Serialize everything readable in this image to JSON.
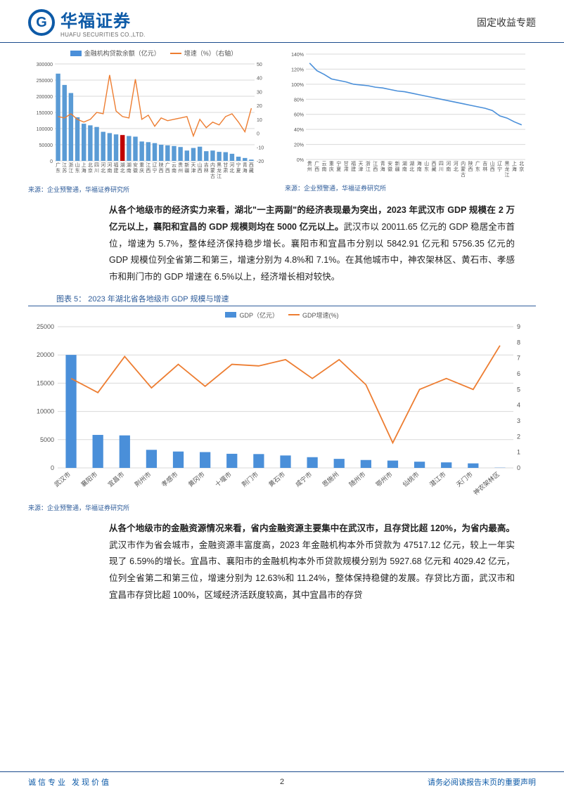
{
  "header": {
    "logo_cn": "华福证券",
    "logo_en": "HUAFU SECURITIES CO.,LTD.",
    "topic": "固定收益专题"
  },
  "chart1": {
    "type": "bar_line_dual_axis",
    "legend_bar": "金融机构贷款余额（亿元）",
    "legend_line": "增速（%）（右轴）",
    "categories": [
      "广东",
      "江苏",
      "浙江",
      "山东",
      "上海",
      "北京",
      "四川",
      "河北",
      "河南",
      "福建",
      "湖北",
      "湖南",
      "安徽",
      "重庆",
      "江西",
      "辽宁",
      "陕西",
      "广西",
      "云南",
      "贵州",
      "新疆",
      "天津",
      "山西",
      "吉林",
      "内蒙古",
      "黑龙江",
      "甘肃",
      "河北",
      "宁夏",
      "青海",
      "西藏"
    ],
    "bar_values": [
      270000,
      235000,
      210000,
      135000,
      115000,
      110000,
      105000,
      90000,
      86000,
      82000,
      80000,
      77000,
      75000,
      60000,
      58000,
      55000,
      50000,
      48000,
      46000,
      43000,
      32000,
      40000,
      44000,
      30000,
      32000,
      28000,
      27000,
      22000,
      13000,
      9000,
      4000
    ],
    "bar_highlight_index": 10,
    "line_values": [
      12,
      11,
      14,
      10,
      8,
      10,
      15,
      14,
      42,
      16,
      12,
      11,
      39,
      10,
      13,
      5,
      11,
      9,
      10,
      11,
      12,
      -2,
      10,
      4,
      8,
      6,
      12,
      14,
      8,
      1,
      18
    ],
    "bar_color": "#5a9bd5",
    "bar_highlight_color": "#c00000",
    "line_color": "#ed7d31",
    "y1_max": 300000,
    "y1_step": 50000,
    "y2_min": -20,
    "y2_max": 50,
    "y2_step": 10,
    "grid_color": "#d9d9d9",
    "label_fontsize": 7
  },
  "chart2": {
    "type": "line",
    "categories": [
      "贵州",
      "广西",
      "云南",
      "重庆",
      "宁夏",
      "甘肃",
      "福建",
      "天津",
      "浙江",
      "江西",
      "青海",
      "安徽",
      "新疆",
      "湖南",
      "湖北",
      "海南",
      "山东",
      "西藏",
      "四川",
      "河南",
      "河北",
      "内蒙古",
      "陕西",
      "广东",
      "吉林",
      "山西",
      "辽宁",
      "黑龙江",
      "上海",
      "北京"
    ],
    "values": [
      128,
      118,
      113,
      107,
      105,
      103,
      100,
      99,
      98,
      96,
      95,
      93,
      91,
      90,
      88,
      86,
      84,
      82,
      80,
      78,
      76,
      74,
      72,
      70,
      68,
      65,
      58,
      55,
      50,
      46
    ],
    "line_color": "#4a8fd9",
    "y_min": 0,
    "y_max": 140,
    "y_step": 20,
    "grid_color": "#d9d9d9",
    "label_fontsize": 7
  },
  "source_text": "来源：企业预警通，华福证券研究所",
  "para1_lead": "从各个地级市的经济实力来看，湖北\"一主两副\"的经济表现最为突出，2023 年武汉市 GDP 规模在 2 万亿元以上，襄阳和宜昌的 GDP 规模则均在 5000 亿元以上。",
  "para1_body": "武汉市以 20011.65 亿元的 GDP 稳居全市首位，增速为 5.7%，整体经济保持稳步增长。襄阳市和宜昌市分别以 5842.91 亿元和 5756.35 亿元的 GDP 规模位列全省第二和第三，增速分别为 4.8%和 7.1%。在其他城市中，神农架林区、黄石市、孝感市和荆门市的 GDP 增速在 6.5%以上，经济增长相对较快。",
  "fig5_title": "图表 5： 2023 年湖北省各地级市 GDP 规模与增速",
  "chart3": {
    "type": "bar_line_dual_axis",
    "legend_bar": "GDP（亿元）",
    "legend_line": "GDP增速(%)",
    "categories": [
      "武汉市",
      "襄阳市",
      "宜昌市",
      "荆州市",
      "孝感市",
      "黄冈市",
      "十堰市",
      "荆门市",
      "黄石市",
      "咸宁市",
      "恩施州",
      "随州市",
      "鄂州市",
      "仙桃市",
      "潜江市",
      "天门市",
      "神农架林区"
    ],
    "bar_values": [
      20011,
      5843,
      5756,
      3200,
      2900,
      2800,
      2500,
      2450,
      2200,
      1900,
      1600,
      1400,
      1300,
      1100,
      980,
      800,
      40
    ],
    "line_values": [
      5.7,
      4.8,
      7.1,
      5.1,
      6.6,
      5.2,
      6.6,
      6.5,
      6.9,
      5.7,
      6.9,
      5.3,
      1.6,
      5.0,
      5.7,
      5.0,
      7.8
    ],
    "bar_color": "#4a8fd9",
    "line_color": "#ed7d31",
    "y1_max": 25000,
    "y1_step": 5000,
    "y2_min": 0,
    "y2_max": 9,
    "y2_step": 1,
    "grid_color": "#d9d9d9",
    "label_fontsize": 9
  },
  "para2_lead": "从各个地级市的金融资源情况来看，省内金融资源主要集中在武汉市，且存贷比超 120%，为省内最高。",
  "para2_body": "武汉市作为省会城市，金融资源丰富度高，2023 年金融机构本外币贷款为 47517.12 亿元，较上一年实现了 6.59%的增长。宜昌市、襄阳市的金融机构本外币贷款规模分别为 5927.68 亿元和 4029.42 亿元，位列全省第二和第三位，增速分别为 12.63%和 11.24%，整体保持稳健的发展。存贷比方面，武汉市和宜昌市存贷比超 100%，区域经济活跃度较高，其中宜昌市的存贷",
  "footer": {
    "left": "诚信专业  发现价值",
    "page": "2",
    "right": "请务必阅读报告末页的重要声明"
  }
}
